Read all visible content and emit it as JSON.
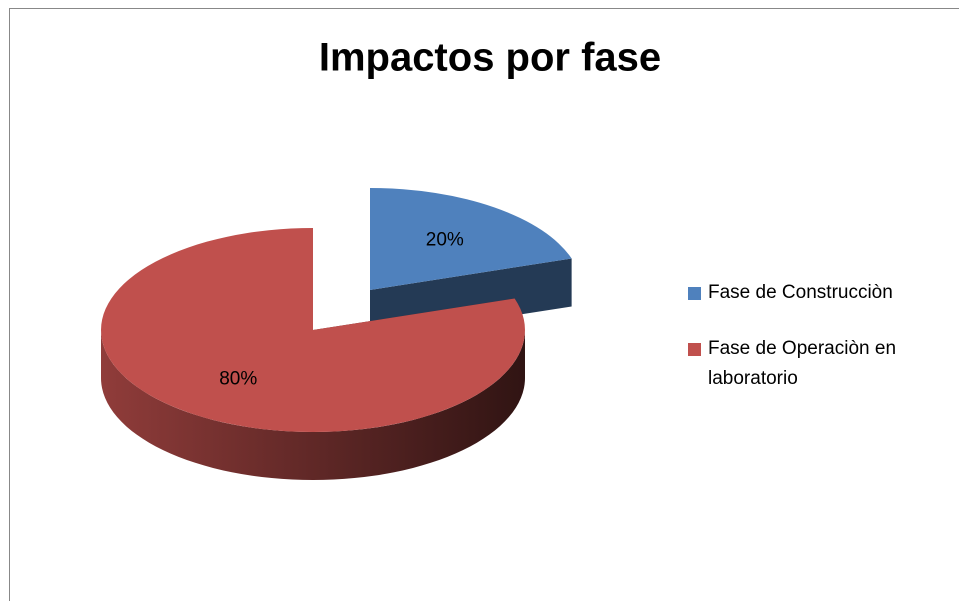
{
  "chart_data": {
    "type": "pie",
    "title": "Impactos por fase",
    "categories": [
      "Fase de Construcciòn",
      "Fase de Operaciòn en laboratorio"
    ],
    "values": [
      20,
      80
    ],
    "value_labels": [
      "20%",
      "80%"
    ],
    "colors": [
      "#4f81bd",
      "#c0504d"
    ],
    "legend": "right"
  }
}
